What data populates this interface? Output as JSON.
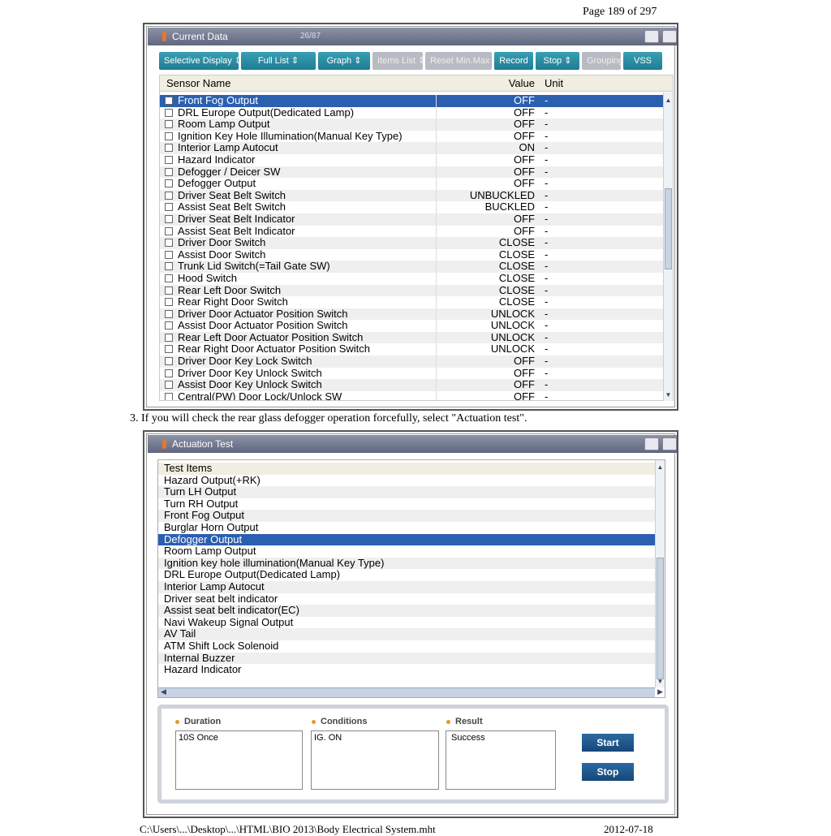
{
  "page": {
    "number": "Page 189 of 297",
    "step": "3. If you will check the rear glass defogger operation forcefully, select \"Actuation test\".",
    "footer_path": "C:\\Users\\...\\Desktop\\...\\HTML\\BIO 2013\\Body Electrical System.mht",
    "footer_date": "2012-07-18"
  },
  "current_data": {
    "title": "Current Data",
    "count": "26/87",
    "toolbar": [
      "Selective Display ⇕",
      "Full List ⇕",
      "Graph ⇕",
      "Items List ⇕",
      "Reset Min.Max",
      "Record",
      "Stop ⇕",
      "Grouping",
      "VSS"
    ],
    "toolbar_disabled": [
      false,
      false,
      false,
      true,
      true,
      false,
      false,
      true,
      false
    ],
    "headers": {
      "name": "Sensor Name",
      "value": "Value",
      "unit": "Unit"
    },
    "rows": [
      [
        "Front Fog Output",
        "OFF",
        "-"
      ],
      [
        "DRL Europe Output(Dedicated Lamp)",
        "OFF",
        "-"
      ],
      [
        "Room Lamp Output",
        "OFF",
        "-"
      ],
      [
        "Ignition Key Hole Illumination(Manual Key Type)",
        "OFF",
        "-"
      ],
      [
        "Interior Lamp Autocut",
        "ON",
        "-"
      ],
      [
        "Hazard Indicator",
        "OFF",
        "-"
      ],
      [
        "Defogger / Deicer SW",
        "OFF",
        "-"
      ],
      [
        "Defogger Output",
        "OFF",
        "-"
      ],
      [
        "Driver Seat Belt Switch",
        "UNBUCKLED",
        "-"
      ],
      [
        "Assist Seat Belt Switch",
        "BUCKLED",
        "-"
      ],
      [
        "Driver Seat Belt Indicator",
        "OFF",
        "-"
      ],
      [
        "Assist Seat Belt Indicator",
        "OFF",
        "-"
      ],
      [
        "Driver Door Switch",
        "CLOSE",
        "-"
      ],
      [
        "Assist Door Switch",
        "CLOSE",
        "-"
      ],
      [
        "Trunk Lid Switch(=Tail Gate SW)",
        "CLOSE",
        "-"
      ],
      [
        "Hood Switch",
        "CLOSE",
        "-"
      ],
      [
        "Rear Left Door Switch",
        "CLOSE",
        "-"
      ],
      [
        "Rear Right Door Switch",
        "CLOSE",
        "-"
      ],
      [
        "Driver Door Actuator Position Switch",
        "UNLOCK",
        "-"
      ],
      [
        "Assist Door Actuator Position Switch",
        "UNLOCK",
        "-"
      ],
      [
        "Rear Left Door Actuator Position Switch",
        "UNLOCK",
        "-"
      ],
      [
        "Rear Right Door Actuator Position Switch",
        "UNLOCK",
        "-"
      ],
      [
        "Driver Door Key Lock Switch",
        "OFF",
        "-"
      ],
      [
        "Driver Door Key Unlock Switch",
        "OFF",
        "-"
      ],
      [
        "Assist Door Key Unlock Switch",
        "OFF",
        "-"
      ],
      [
        "Central(PW) Door Lock/Unlock SW",
        "OFF",
        "-"
      ]
    ],
    "selected_index": 0
  },
  "actuation_test": {
    "title": "Actuation Test",
    "header": "Test Items",
    "items": [
      "Hazard Output(+RK)",
      "Turn LH Output",
      "Turn RH Output",
      "Front Fog Output",
      "Burglar Horn Output",
      "Defogger Output",
      "Room Lamp Output",
      "Ignition key hole illumination(Manual Key Type)",
      "DRL Europe Output(Dedicated Lamp)",
      "Interior Lamp Autocut",
      "Driver seat belt indicator",
      "Assist seat belt indicator(EC)",
      "Navi Wakeup Signal Output",
      "AV Tail",
      "ATM Shift Lock Solenoid",
      "Internal Buzzer",
      "Hazard Indicator"
    ],
    "selected_index": 5,
    "duration_label": "Duration",
    "duration": "10S Once",
    "conditions_label": "Conditions",
    "conditions": "IG. ON",
    "result_label": "Result",
    "result": "Success",
    "start": "Start",
    "stop": "Stop"
  },
  "colors": {
    "selection": "#2b5fb0",
    "toolbar": "#1e7c92",
    "title_bar": "#5f6780"
  }
}
